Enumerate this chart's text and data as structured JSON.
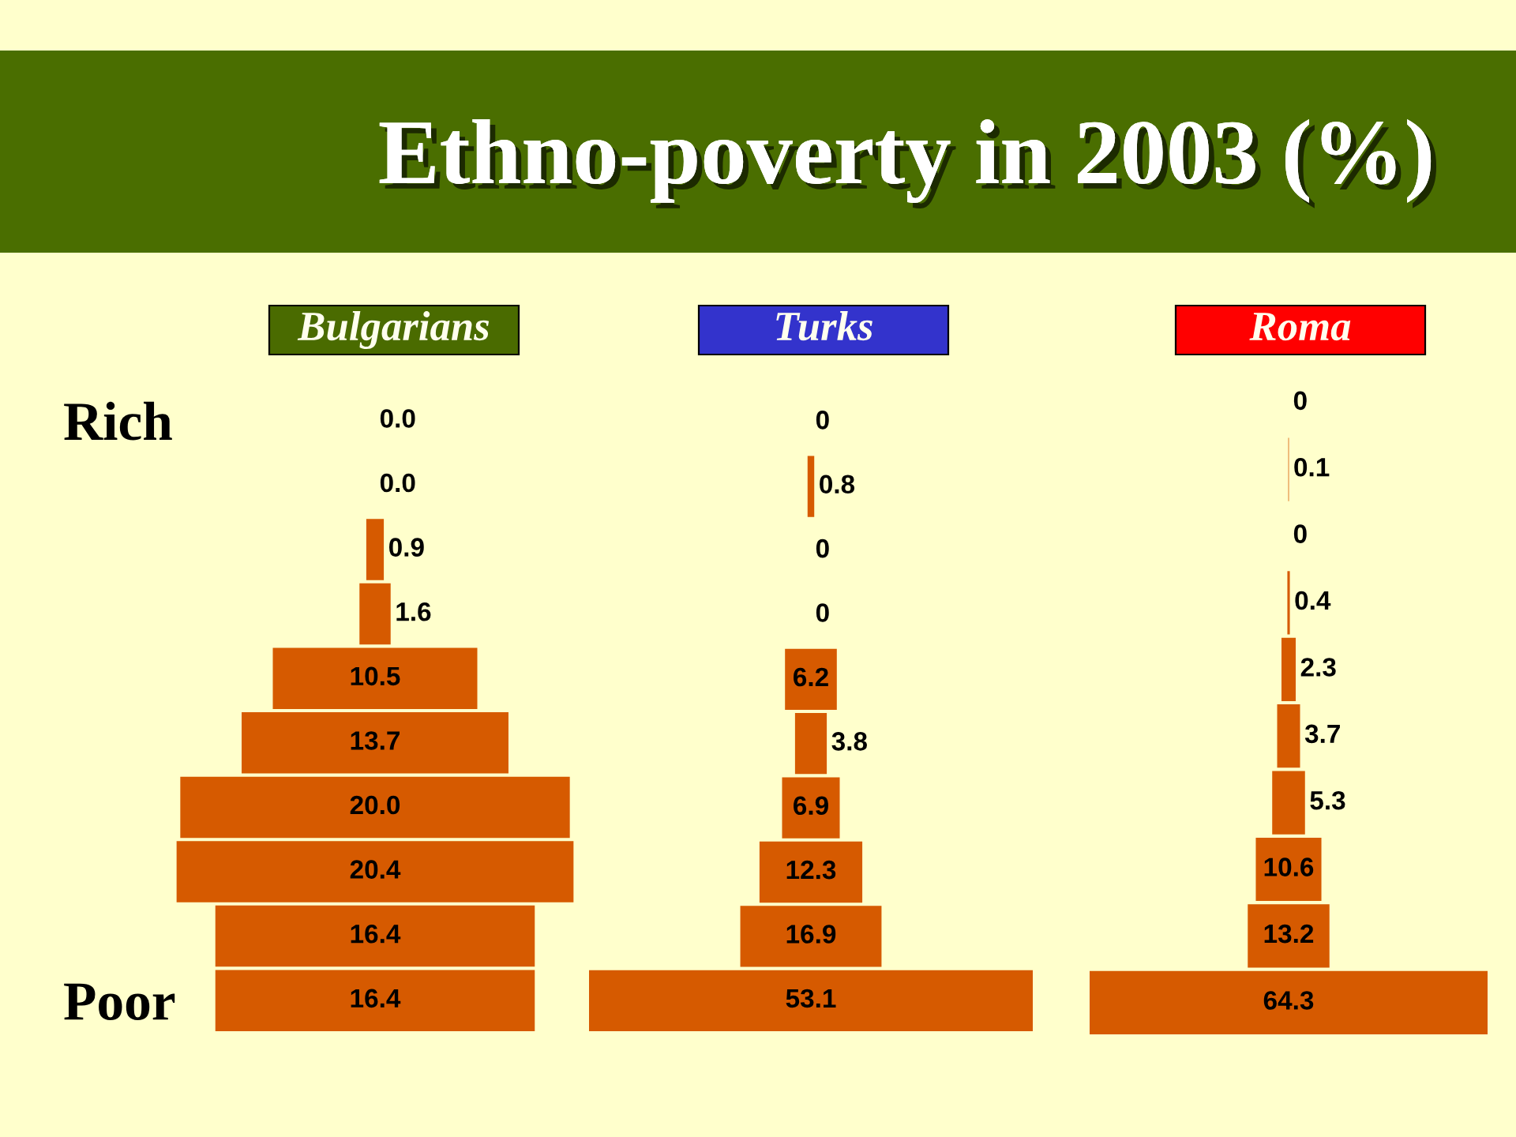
{
  "chart_data": [
    {
      "type": "other",
      "title": "Bulgarians",
      "annotations": [
        "Ethno-poverty in 2003 (%)"
      ],
      "categories": [
        "Rich",
        null,
        null,
        null,
        null,
        null,
        null,
        null,
        null,
        "Poor"
      ],
      "values": [
        0.0,
        0.0,
        0.9,
        1.6,
        10.5,
        13.7,
        20.0,
        20.4,
        16.4,
        16.4
      ],
      "value_labels": [
        "0.0",
        "0.0",
        "0.9",
        "1.6",
        "10.5",
        "13.7",
        "20.0",
        "20.4",
        "16.4",
        "16.4"
      ],
      "color": "#d65a00"
    },
    {
      "type": "other",
      "title": "Turks",
      "categories": [
        null,
        null,
        null,
        null,
        null,
        null,
        null,
        null,
        null,
        null
      ],
      "values": [
        0,
        0.8,
        0,
        0,
        6.2,
        3.8,
        6.9,
        12.3,
        16.9,
        53.1
      ],
      "value_labels": [
        "0",
        "0.8",
        "0",
        "0",
        "6.2",
        "3.8",
        "6.9",
        "12.3",
        "16.9",
        "53.1"
      ],
      "color": "#d65a00"
    },
    {
      "type": "other",
      "title": "Roma",
      "categories": [
        null,
        null,
        null,
        null,
        null,
        null,
        null,
        null,
        null,
        null
      ],
      "values": [
        0,
        0.1,
        0,
        0.4,
        2.3,
        3.7,
        5.3,
        10.6,
        13.2,
        64.3
      ],
      "value_labels": [
        "0",
        "0.1",
        "0",
        "0.4",
        "2.3",
        "3.7",
        "5.3",
        "10.6",
        "13.2",
        "64.3"
      ],
      "color": "#d65a00"
    }
  ]
}
